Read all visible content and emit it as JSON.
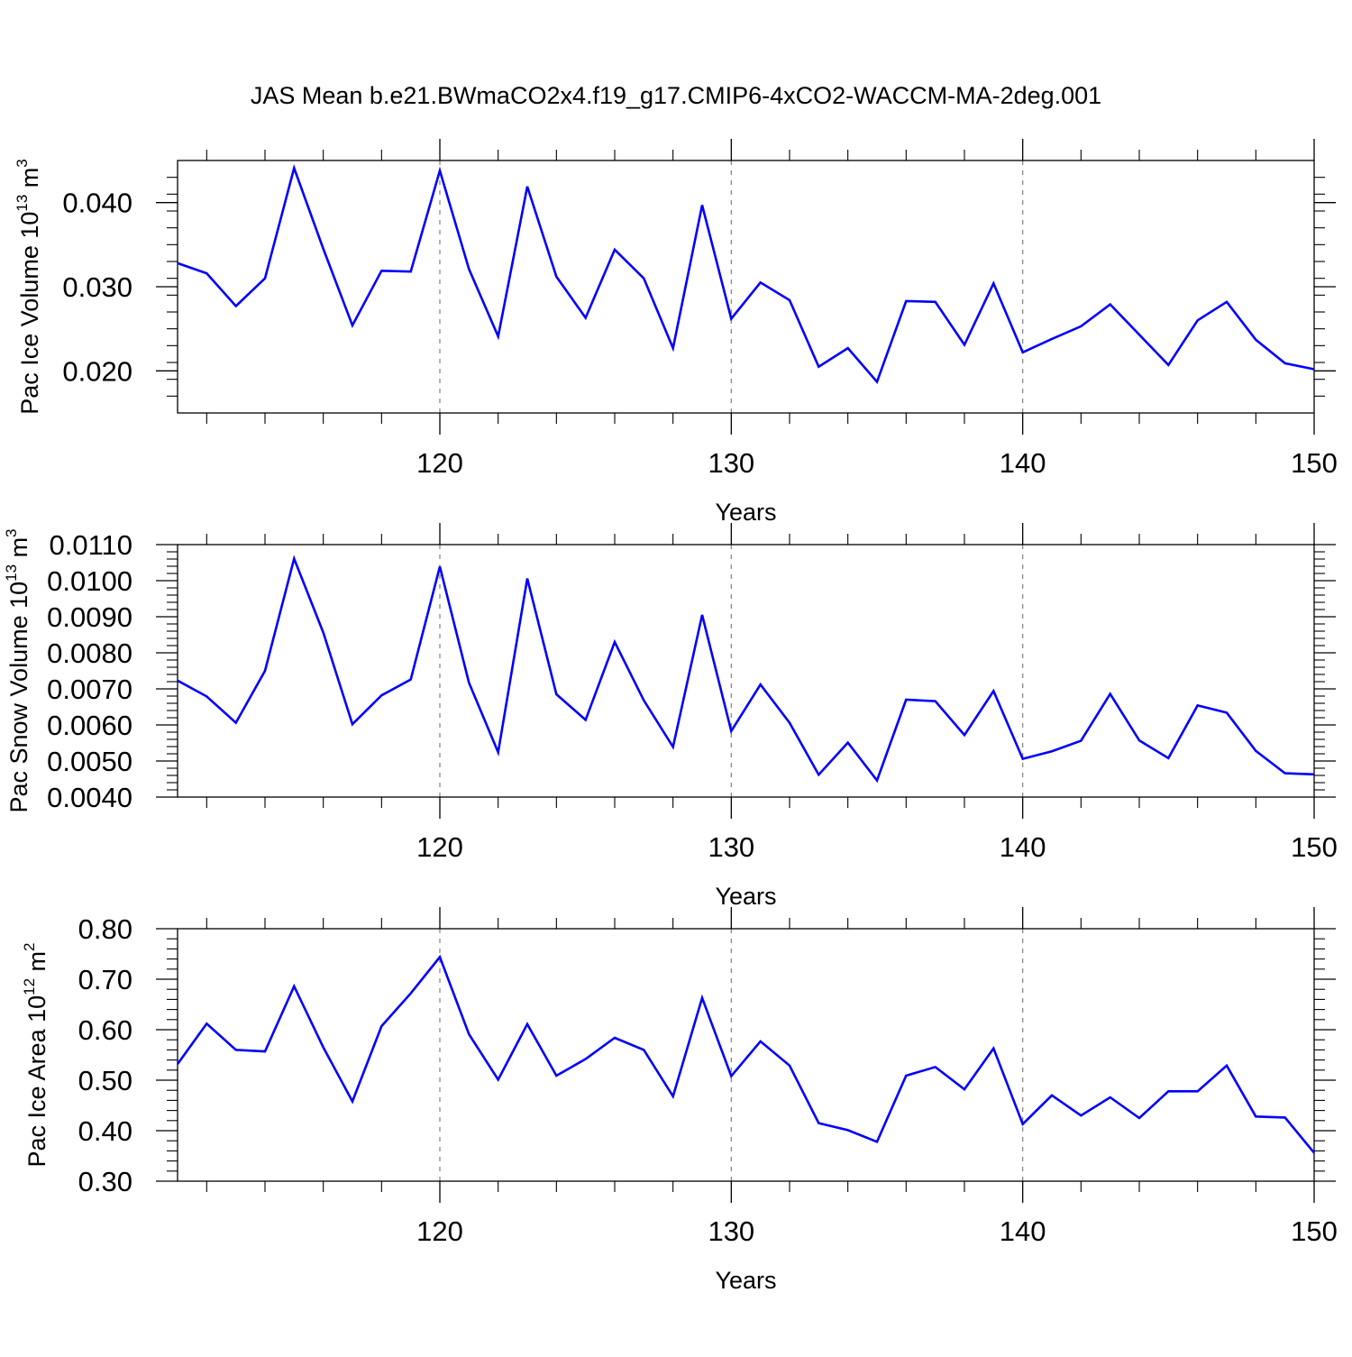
{
  "title": "JAS Mean b.e21.BWmaCO2x4.f19_g17.CMIP6-4xCO2-WACCM-MA-2deg.001",
  "colors": {
    "series": "#0000ff",
    "axis": "#000000",
    "refline": "#808080"
  },
  "chart_data": [
    {
      "type": "line",
      "ylabel": {
        "main": "Pac Ice Volume 10",
        "sup": "13",
        "mid": " m",
        "sup2": "3"
      },
      "xlabel": "Years",
      "xlim": [
        111,
        150
      ],
      "ylim": [
        0.015,
        0.045
      ],
      "xticks": [
        120,
        130,
        140,
        150
      ],
      "xtick_labels": [
        "120",
        "130",
        "140",
        "150"
      ],
      "yticks": [
        0.02,
        0.03,
        0.04
      ],
      "ytick_labels": [
        "0.020",
        "0.030",
        "0.040"
      ],
      "yminor_step": 0.002,
      "reference_lines_x": [
        120,
        130,
        140
      ],
      "series": [
        {
          "x": [
            111,
            112,
            113,
            114,
            115,
            116,
            117,
            118,
            119,
            120,
            121,
            122,
            123,
            124,
            125,
            126,
            127,
            128,
            129,
            130,
            131,
            132,
            133,
            134,
            135,
            136,
            137,
            138,
            139,
            140,
            141,
            142,
            143,
            144,
            145,
            146,
            147,
            148,
            149,
            150
          ],
          "values": [
            0.0328,
            0.0316,
            0.0277,
            0.031,
            0.0441,
            0.0345,
            0.0254,
            0.0319,
            0.0318,
            0.0438,
            0.0321,
            0.0241,
            0.0419,
            0.0312,
            0.0263,
            0.0344,
            0.031,
            0.0227,
            0.0397,
            0.0262,
            0.0305,
            0.0284,
            0.0205,
            0.0227,
            0.0187,
            0.0283,
            0.0282,
            0.0231,
            0.0304,
            0.0222,
            0.0238,
            0.0253,
            0.0279,
            0.0243,
            0.0207,
            0.026,
            0.0282,
            0.0237,
            0.0209,
            0.0202
          ]
        }
      ]
    },
    {
      "type": "line",
      "ylabel": {
        "main": "Pac Snow Volume 10",
        "sup": "13",
        "mid": " m",
        "sup2": "3"
      },
      "xlabel": "Years",
      "xlim": [
        111,
        150
      ],
      "ylim": [
        0.004,
        0.011
      ],
      "xticks": [
        120,
        130,
        140,
        150
      ],
      "xtick_labels": [
        "120",
        "130",
        "140",
        "150"
      ],
      "yticks": [
        0.004,
        0.005,
        0.006,
        0.007,
        0.008,
        0.009,
        0.01,
        0.011
      ],
      "ytick_labels": [
        "0.0040",
        "0.0050",
        "0.0060",
        "0.0070",
        "0.0080",
        "0.0090",
        "0.0100",
        "0.0110"
      ],
      "yminor_step": 0.0002,
      "reference_lines_x": [
        120,
        130,
        140
      ],
      "series": [
        {
          "x": [
            111,
            112,
            113,
            114,
            115,
            116,
            117,
            118,
            119,
            120,
            121,
            122,
            123,
            124,
            125,
            126,
            127,
            128,
            129,
            130,
            131,
            132,
            133,
            134,
            135,
            136,
            137,
            138,
            139,
            140,
            141,
            142,
            143,
            144,
            145,
            146,
            147,
            148,
            149,
            150
          ],
          "values": [
            0.00723,
            0.00679,
            0.00606,
            0.0075,
            0.01061,
            0.00856,
            0.00602,
            0.00682,
            0.00726,
            0.01039,
            0.00717,
            0.00524,
            0.01006,
            0.00685,
            0.00614,
            0.0083,
            0.00668,
            0.00539,
            0.00905,
            0.00583,
            0.00712,
            0.00606,
            0.00462,
            0.00551,
            0.00446,
            0.0067,
            0.00666,
            0.00572,
            0.00694,
            0.00506,
            0.00527,
            0.00556,
            0.00686,
            0.00557,
            0.00508,
            0.00654,
            0.00634,
            0.00528,
            0.00466,
            0.00463
          ]
        }
      ]
    },
    {
      "type": "line",
      "ylabel": {
        "main": "Pac Ice Area 10",
        "sup": "12",
        "mid": " m",
        "sup2": "2"
      },
      "xlabel": "Years",
      "xlim": [
        111,
        150
      ],
      "ylim": [
        0.3,
        0.8
      ],
      "xticks": [
        120,
        130,
        140,
        150
      ],
      "xtick_labels": [
        "120",
        "130",
        "140",
        "150"
      ],
      "yticks": [
        0.3,
        0.4,
        0.5,
        0.6,
        0.7,
        0.8
      ],
      "ytick_labels": [
        "0.30",
        "0.40",
        "0.50",
        "0.60",
        "0.70",
        "0.80"
      ],
      "yminor_step": 0.02,
      "reference_lines_x": [
        120,
        130,
        140
      ],
      "series": [
        {
          "x": [
            111,
            112,
            113,
            114,
            115,
            116,
            117,
            118,
            119,
            120,
            121,
            122,
            123,
            124,
            125,
            126,
            127,
            128,
            129,
            130,
            131,
            132,
            133,
            134,
            135,
            136,
            137,
            138,
            139,
            140,
            141,
            142,
            143,
            144,
            145,
            146,
            147,
            148,
            149,
            150
          ],
          "values": [
            0.532,
            0.612,
            0.56,
            0.557,
            0.686,
            0.565,
            0.458,
            0.607,
            0.672,
            0.744,
            0.591,
            0.501,
            0.611,
            0.509,
            0.542,
            0.584,
            0.56,
            0.468,
            0.663,
            0.508,
            0.577,
            0.529,
            0.415,
            0.401,
            0.378,
            0.509,
            0.526,
            0.482,
            0.563,
            0.413,
            0.47,
            0.43,
            0.466,
            0.425,
            0.478,
            0.478,
            0.529,
            0.428,
            0.426,
            0.356
          ]
        }
      ]
    }
  ]
}
